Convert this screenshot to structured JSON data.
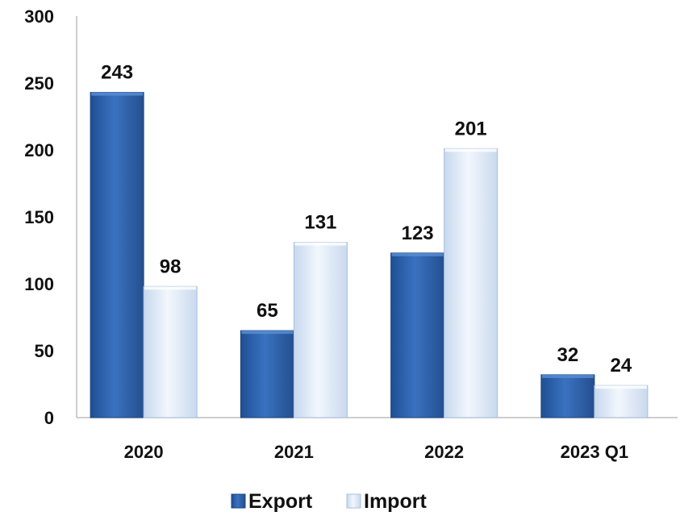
{
  "chart_data": {
    "type": "bar",
    "categories": [
      "2020",
      "2021",
      "2022",
      "2023 Q1"
    ],
    "series": [
      {
        "name": "Export",
        "values": [
          243,
          65,
          123,
          32
        ],
        "color": "#2e63ad"
      },
      {
        "name": "Import",
        "values": [
          98,
          131,
          201,
          24
        ],
        "color": "#dce8f7"
      }
    ],
    "title": "",
    "xlabel": "",
    "ylabel": "",
    "ylim": [
      0,
      300
    ],
    "yticks": [
      "0",
      "50",
      "100",
      "150",
      "200",
      "250",
      "300"
    ],
    "grid": false,
    "legend_position": "bottom"
  }
}
